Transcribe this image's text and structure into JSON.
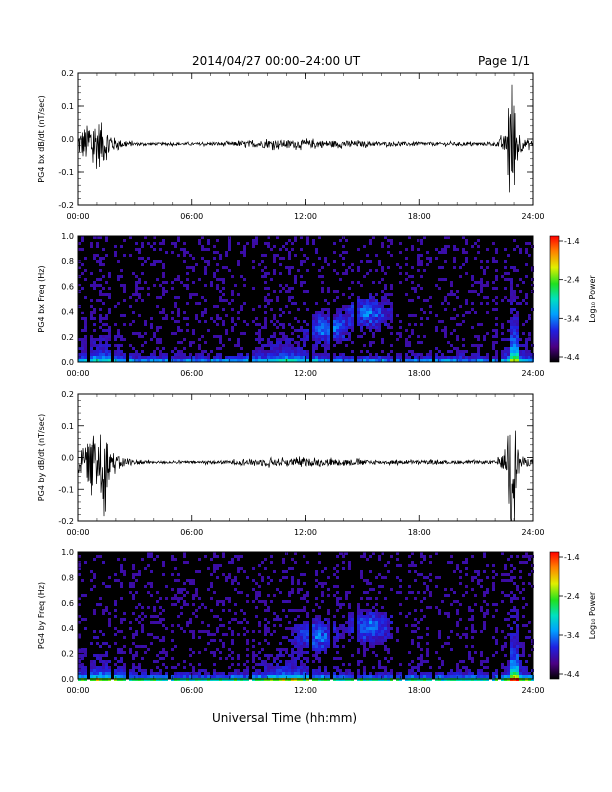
{
  "header": {
    "title": "2014/04/27  00:00–24:00 UT",
    "page": "Page 1/1"
  },
  "footer": {
    "xlabel": "Universal Time (hh:mm)"
  },
  "colorbar": {
    "label": "Log₁₀ Power",
    "ticks": [
      "-1.4",
      "-2.4",
      "-3.4",
      "-4.4"
    ],
    "range": [
      -4.4,
      -1.4
    ]
  },
  "chart_data": [
    {
      "type": "line",
      "ylabel": "PG4 bx dB/dt (nT/sec)",
      "xlim": [
        0,
        24
      ],
      "ylim": [
        -0.2,
        0.2
      ],
      "xticks": [
        "00:00",
        "06:00",
        "12:00",
        "18:00",
        "24:00"
      ],
      "yticks": [
        "0.2",
        "0.1",
        "0.0",
        "-0.1",
        "-0.2"
      ],
      "series": [
        {
          "x": [
            0,
            0.5,
            1,
            1.5,
            2,
            3,
            4,
            6,
            8,
            10,
            12,
            14,
            16,
            18,
            20,
            22,
            22.6,
            22.75,
            22.9,
            23.2,
            23.5,
            24
          ],
          "envelope": [
            0.035,
            0.06,
            0.08,
            0.05,
            0.015,
            0.005,
            0.004,
            0.004,
            0.006,
            0.012,
            0.012,
            0.01,
            0.006,
            0.006,
            0.005,
            0.005,
            0.03,
            0.2,
            0.2,
            0.05,
            0.015,
            0.01
          ]
        }
      ]
    },
    {
      "type": "heatmap",
      "ylabel": "PG4 bx Freq (Hz)",
      "xlim": [
        0,
        24
      ],
      "ylim": [
        0,
        1.0
      ],
      "xticks": [
        "00:00",
        "06:00",
        "12:00",
        "18:00",
        "24:00"
      ],
      "yticks": [
        "1.0",
        "0.8",
        "0.6",
        "0.4",
        "0.2",
        "0.0"
      ],
      "value_label": "Log₁₀ Power",
      "crange": [
        -4.4,
        -1.4
      ],
      "gaps": [
        0.45,
        1.8,
        2.5,
        4.7,
        9.05,
        12.15,
        13.35,
        14.6,
        16.6,
        17.15,
        18.65,
        21.7,
        22.2
      ],
      "hotspots": [
        {
          "t": 15.2,
          "f": 0.4,
          "r": 0.09
        },
        {
          "t": 13.1,
          "f": 0.28,
          "r": 0.05
        }
      ],
      "activity": [
        {
          "t": 1.0,
          "w": 1.2
        },
        {
          "t": 11.0,
          "w": 1.5
        },
        {
          "t": 23.0,
          "w": 0.6
        }
      ]
    },
    {
      "type": "line",
      "ylabel": "PG4 by dB/dt (nT/sec)",
      "xlim": [
        0,
        24
      ],
      "ylim": [
        -0.2,
        0.2
      ],
      "xticks": [
        "00:00",
        "06:00",
        "12:00",
        "18:00",
        "24:00"
      ],
      "yticks": [
        "0.2",
        "0.1",
        "0.0",
        "-0.1",
        "-0.2"
      ],
      "series": [
        {
          "x": [
            0,
            0.5,
            1,
            1.3,
            1.6,
            2,
            3,
            4,
            6,
            8,
            10,
            12,
            14,
            16,
            18,
            20,
            22,
            22.6,
            22.75,
            22.9,
            23.2,
            23.5,
            24
          ],
          "envelope": [
            0.03,
            0.06,
            0.1,
            0.14,
            0.06,
            0.02,
            0.008,
            0.004,
            0.004,
            0.006,
            0.012,
            0.012,
            0.01,
            0.006,
            0.006,
            0.005,
            0.005,
            0.03,
            0.2,
            0.2,
            0.05,
            0.015,
            0.01
          ]
        }
      ]
    },
    {
      "type": "heatmap",
      "ylabel": "PG4 by Freq (Hz)",
      "xlim": [
        0,
        24
      ],
      "ylim": [
        0,
        1.0
      ],
      "xticks": [
        "00:00",
        "06:00",
        "12:00",
        "18:00",
        "24:00"
      ],
      "yticks": [
        "1.0",
        "0.8",
        "0.6",
        "0.4",
        "0.2",
        "0.0"
      ],
      "value_label": "Log₁₀ Power",
      "crange": [
        -4.4,
        -1.4
      ],
      "gaps": [
        0.45,
        1.8,
        2.5,
        4.7,
        9.05,
        12.15,
        13.35,
        14.6,
        16.6,
        17.15,
        18.65,
        21.7,
        22.2
      ],
      "hotspots": [
        {
          "t": 15.3,
          "f": 0.42,
          "r": 0.08
        },
        {
          "t": 12.5,
          "f": 0.35,
          "r": 0.05
        }
      ],
      "activity": [
        {
          "t": 1.0,
          "w": 1.2
        },
        {
          "t": 11.0,
          "w": 1.5
        },
        {
          "t": 23.0,
          "w": 0.6
        }
      ]
    }
  ]
}
